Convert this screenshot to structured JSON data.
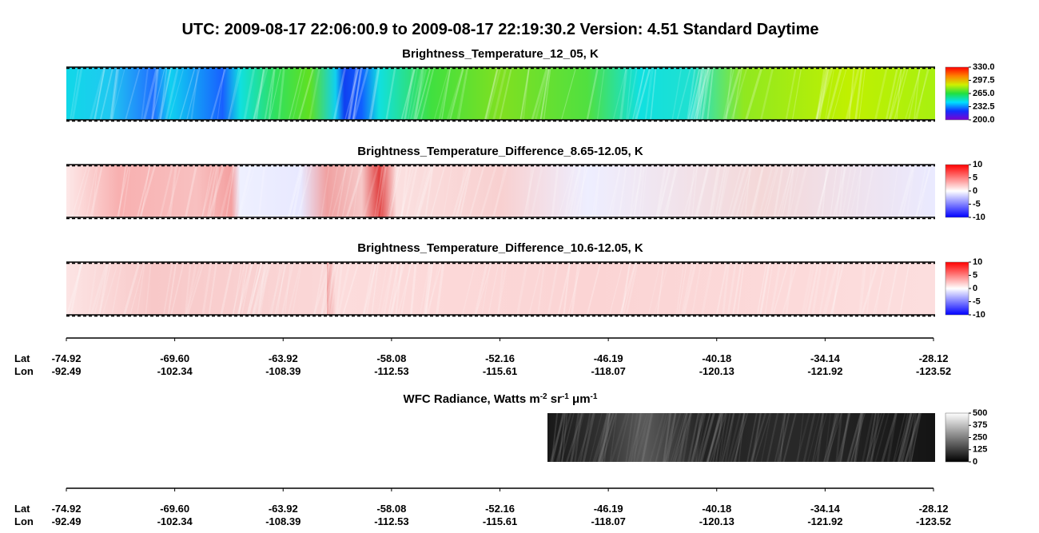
{
  "title": "UTC:  2009-08-17   22:06:00.9  to  2009-08-17   22:19:30.2    Version: 4.51  Standard Daytime",
  "panels": [
    {
      "title": "Brightness_Temperature_12_05, K",
      "colorbar": {
        "range": [
          200,
          330
        ],
        "colormap": [
          "#7a00d0",
          "#1030ff",
          "#00e0ff",
          "#20e040",
          "#d0f000",
          "#ff8000",
          "#ff0000"
        ],
        "ticks": [
          {
            "value": 330,
            "label": "330.0"
          },
          297.5,
          {
            "value": 265,
            "label": "265.0"
          },
          232.5,
          {
            "value": 200,
            "label": "200.0"
          }
        ]
      }
    },
    {
      "title": "Brightness_Temperature_Difference_8.65-12.05, K",
      "colorbar": {
        "range": [
          -10,
          10
        ],
        "colormap": [
          "#0000ff",
          "#8080ff",
          "#ffffff",
          "#ff8080",
          "#ff0000"
        ],
        "ticks": [
          10,
          5,
          0,
          -5,
          -10
        ]
      }
    },
    {
      "title": "Brightness_Temperature_Difference_10.6-12.05, K",
      "colorbar": {
        "range": [
          -10,
          10
        ],
        "colormap": [
          "#0000ff",
          "#8080ff",
          "#ffffff",
          "#ff8080",
          "#ff0000"
        ],
        "ticks": [
          10,
          5,
          0,
          -5,
          -10
        ]
      }
    },
    {
      "title_parts": [
        {
          "text": "WFC Radiance, Watts m"
        },
        {
          "text": "-2",
          "sup": true
        },
        {
          "text": " sr"
        },
        {
          "text": "-1",
          "sup": true
        },
        {
          "text": " μm"
        },
        {
          "text": "-1",
          "sup": true
        }
      ],
      "colorbar": {
        "range": [
          0,
          500
        ],
        "colormap": [
          "#000000",
          "#ffffff"
        ],
        "ticks": [
          500,
          375,
          250,
          125,
          0
        ]
      }
    }
  ],
  "axes": [
    {
      "lat_label": "Lat",
      "lon_label": "Lon",
      "lat": [
        "-74.92",
        "-69.60",
        "-63.92",
        "-58.08",
        "-52.16",
        "-46.19",
        "-40.18",
        "-34.14",
        "-28.12"
      ],
      "lon": [
        "-92.49",
        "-102.34",
        "-108.39",
        "-112.53",
        "-115.61",
        "-118.07",
        "-120.13",
        "-121.92",
        "-123.52"
      ]
    },
    {
      "lat_label": "Lat",
      "lon_label": "Lon",
      "lat": [
        "-74.92",
        "-69.60",
        "-63.92",
        "-58.08",
        "-52.16",
        "-46.19",
        "-40.18",
        "-34.14",
        "-28.12"
      ],
      "lon": [
        "-92.49",
        "-102.34",
        "-108.39",
        "-112.53",
        "-115.61",
        "-118.07",
        "-120.13",
        "-121.92",
        "-123.52"
      ]
    }
  ]
}
